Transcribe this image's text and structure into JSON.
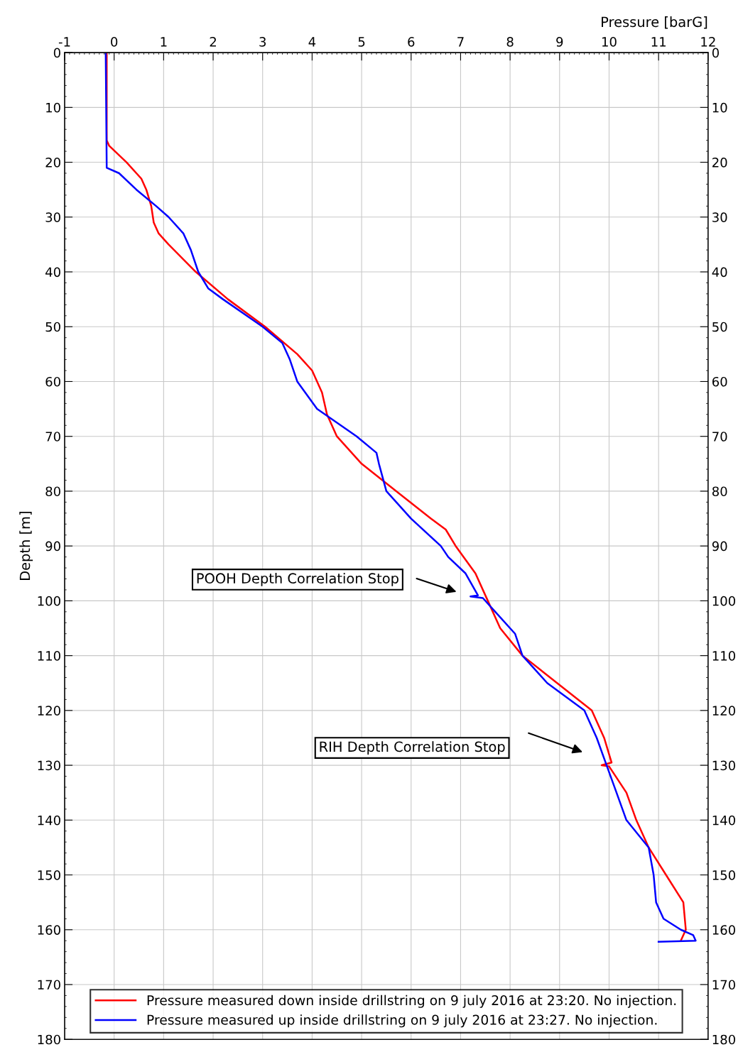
{
  "chart_data": {
    "type": "line",
    "xlabel": "Pressure [barG]",
    "ylabel": "Depth [m]",
    "xlim": [
      -1,
      12
    ],
    "xticks": [
      -1,
      0,
      1,
      2,
      3,
      4,
      5,
      6,
      7,
      8,
      9,
      10,
      11,
      12
    ],
    "ylim": [
      180,
      0
    ],
    "yticks": [
      0,
      10,
      20,
      30,
      40,
      50,
      60,
      70,
      80,
      90,
      100,
      110,
      120,
      130,
      140,
      150,
      160,
      170,
      180
    ],
    "y2lim": [
      180,
      0
    ],
    "y2ticks": [
      0,
      10,
      20,
      30,
      40,
      50,
      60,
      70,
      80,
      90,
      100,
      110,
      120,
      130,
      140,
      150,
      160,
      170,
      180
    ],
    "grid": true,
    "legend": "bottom",
    "marker": "none",
    "line_style": "solid",
    "annotations": [
      "POOH Depth Correlation Stop",
      "RIH Depth Correlation Stop"
    ],
    "series": [
      {
        "name": "Pressure measured down inside drillstring on 9 july 2016 at 23:20. No injection.",
        "color": "#ff0000",
        "x": [
          -0.15,
          -0.15,
          -0.1,
          0.25,
          0.55,
          0.65,
          0.75,
          0.8,
          0.9,
          1.1,
          1.65,
          2.3,
          3.05,
          3.7,
          4.0,
          4.2,
          4.3,
          4.5,
          5.0,
          5.7,
          6.4,
          6.7,
          6.9,
          7.3,
          7.55,
          7.8,
          8.25,
          8.95,
          9.65,
          9.9,
          10.05,
          9.85,
          10.0,
          10.35,
          10.55,
          10.8,
          11.15,
          11.5,
          11.55,
          11.45
        ],
        "values": [
          0,
          16,
          17,
          20,
          23,
          25,
          28,
          31,
          33,
          35,
          40,
          45,
          50,
          55,
          58,
          62,
          66,
          70,
          75,
          80,
          85,
          87,
          90,
          95,
          100,
          105,
          110,
          115,
          120,
          125,
          129.5,
          130,
          130.2,
          135,
          140,
          145,
          150,
          155,
          160,
          162
        ]
      },
      {
        "name": "Pressure measured up inside drillstring on 9 july 2016 at 23:27. No injection.",
        "color": "#0000ff",
        "x": [
          -0.17,
          -0.15,
          0.1,
          0.45,
          0.85,
          1.1,
          1.4,
          1.55,
          1.7,
          1.9,
          2.2,
          3.0,
          3.4,
          3.55,
          3.7,
          4.1,
          4.9,
          5.3,
          5.35,
          5.5,
          6.0,
          6.6,
          6.75,
          7.1,
          7.35,
          7.2,
          7.45,
          7.7,
          8.1,
          8.25,
          8.75,
          9.5,
          9.75,
          9.95,
          10.15,
          10.35,
          10.8,
          10.9,
          10.95,
          11.1,
          11.45,
          11.7,
          11.75,
          11.0
        ],
        "values": [
          0,
          21,
          22,
          25,
          28,
          30,
          33,
          36,
          40,
          43,
          45,
          50,
          53,
          56,
          60,
          65,
          70,
          73,
          75,
          80,
          85,
          90,
          92,
          95,
          99,
          99.2,
          99.5,
          102,
          106,
          110,
          115,
          120,
          125,
          130,
          135,
          140,
          145,
          150,
          155,
          158,
          160,
          161,
          162,
          162.2
        ]
      }
    ]
  }
}
